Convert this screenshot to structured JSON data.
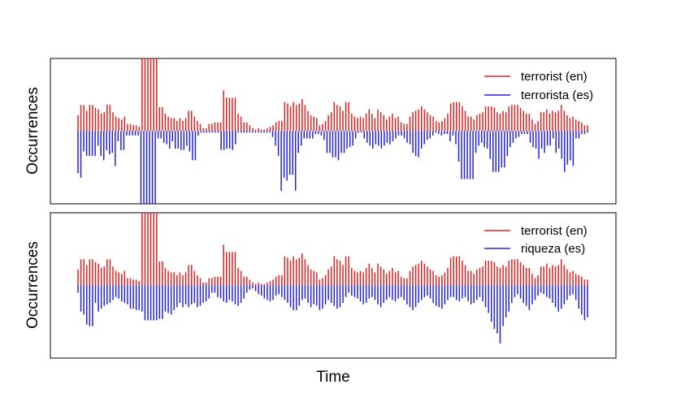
{
  "chart_data": {
    "xlabel": "Time",
    "colors": {
      "en": "#dd2222",
      "es": "#2222dd"
    },
    "panels": [
      {
        "type": "bar",
        "ylabel": "Occurrences",
        "legend_position": "top-right",
        "ylim": [
          -1.0,
          1.0
        ],
        "series": [
          {
            "name": "terrorist (en)",
            "color": "#dd2222",
            "direction": "up",
            "values": [
              0.22,
              0.36,
              0.36,
              0.28,
              0.36,
              0.36,
              0.32,
              0.3,
              0.24,
              0.26,
              0.36,
              0.36,
              0.26,
              0.2,
              0.18,
              0.16,
              0.2,
              0.1,
              0.1,
              0.08,
              0.08,
              0.06,
              1.0,
              1.0,
              1.0,
              1.0,
              1.0,
              1.0,
              0.33,
              0.33,
              0.24,
              0.2,
              0.18,
              0.18,
              0.14,
              0.18,
              0.14,
              0.18,
              0.28,
              0.28,
              0.2,
              0.14,
              0.1,
              0.04,
              0.04,
              0.1,
              0.1,
              0.12,
              0.12,
              0.12,
              0.56,
              0.46,
              0.46,
              0.46,
              0.46,
              0.24,
              0.2,
              0.12,
              0.12,
              0.08,
              0.04,
              0.02,
              0.04,
              0.02,
              0.02,
              0.04,
              0.06,
              0.08,
              0.12,
              0.14,
              0.14,
              0.4,
              0.38,
              0.34,
              0.4,
              0.36,
              0.38,
              0.44,
              0.36,
              0.28,
              0.22,
              0.2,
              0.18,
              0.08,
              0.1,
              0.14,
              0.22,
              0.26,
              0.4,
              0.36,
              0.34,
              0.28,
              0.4,
              0.4,
              0.24,
              0.2,
              0.18,
              0.2,
              0.18,
              0.24,
              0.3,
              0.24,
              0.18,
              0.3,
              0.26,
              0.22,
              0.16,
              0.2,
              0.24,
              0.18,
              0.2,
              0.12,
              0.1,
              0.1,
              0.2,
              0.26,
              0.28,
              0.3,
              0.34,
              0.3,
              0.26,
              0.22,
              0.2,
              0.14,
              0.12,
              0.14,
              0.18,
              0.24,
              0.38,
              0.4,
              0.4,
              0.4,
              0.34,
              0.28,
              0.2,
              0.2,
              0.16,
              0.22,
              0.24,
              0.26,
              0.34,
              0.34,
              0.34,
              0.32,
              0.26,
              0.24,
              0.28,
              0.26,
              0.34,
              0.36,
              0.36,
              0.36,
              0.32,
              0.28,
              0.24,
              0.24,
              0.16,
              0.1,
              0.14,
              0.26,
              0.26,
              0.3,
              0.24,
              0.28,
              0.26,
              0.28,
              0.36,
              0.28,
              0.22,
              0.18,
              0.2,
              0.16,
              0.14,
              0.12,
              0.08,
              0.08
            ]
          },
          {
            "name": "terrorista (es)",
            "color": "#2222dd",
            "direction": "down",
            "values": [
              0.58,
              0.64,
              0.28,
              0.34,
              0.34,
              0.34,
              0.34,
              0.2,
              0.34,
              0.4,
              0.26,
              0.32,
              0.3,
              0.48,
              0.14,
              0.26,
              0.26,
              0.06,
              0.06,
              0.06,
              0.06,
              0.06,
              1.0,
              1.0,
              1.0,
              1.0,
              1.0,
              1.0,
              0.1,
              0.1,
              0.16,
              0.18,
              0.24,
              0.14,
              0.24,
              0.24,
              0.26,
              0.26,
              0.2,
              0.28,
              0.4,
              0.4,
              0.06,
              0.02,
              0.02,
              0.02,
              0.02,
              0.02,
              0.02,
              0.02,
              0.26,
              0.26,
              0.24,
              0.24,
              0.26,
              0.18,
              0.02,
              0.02,
              0.02,
              0.02,
              0.02,
              0.02,
              0.02,
              0.02,
              0.02,
              0.02,
              0.02,
              0.02,
              0.08,
              0.2,
              0.34,
              0.82,
              0.64,
              0.68,
              0.6,
              0.6,
              0.82,
              0.3,
              0.2,
              0.1,
              0.1,
              0.1,
              0.1,
              0.04,
              0.04,
              0.06,
              0.12,
              0.3,
              0.3,
              0.36,
              0.36,
              0.4,
              0.3,
              0.3,
              0.24,
              0.22,
              0.2,
              0.1,
              0.02,
              0.02,
              0.1,
              0.16,
              0.2,
              0.24,
              0.18,
              0.2,
              0.24,
              0.2,
              0.16,
              0.18,
              0.14,
              0.1,
              0.06,
              0.06,
              0.1,
              0.16,
              0.18,
              0.3,
              0.34,
              0.36,
              0.24,
              0.18,
              0.12,
              0.1,
              0.06,
              0.02,
              0.04,
              0.06,
              0.04,
              0.04,
              0.14,
              0.06,
              0.18,
              0.42,
              0.66,
              0.66,
              0.66,
              0.66,
              0.66,
              0.3,
              0.2,
              0.16,
              0.22,
              0.24,
              0.38,
              0.56,
              0.56,
              0.56,
              0.5,
              0.5,
              0.34,
              0.22,
              0.16,
              0.1,
              0.08,
              0.04,
              0.04,
              0.04,
              0.16,
              0.22,
              0.24,
              0.38,
              0.24,
              0.3,
              0.2,
              0.2,
              0.1,
              0.3,
              0.24,
              0.38,
              0.56,
              0.46,
              0.4,
              0.48,
              0.1,
              0.1,
              0.04,
              0.04,
              0.02
            ]
          }
        ]
      },
      {
        "type": "bar",
        "ylabel": "Occurrences",
        "legend_position": "top-right",
        "ylim": [
          -1.0,
          1.0
        ],
        "series": [
          {
            "name": "terrorist (en)",
            "color": "#dd2222",
            "direction": "up",
            "values": [
              0.22,
              0.36,
              0.36,
              0.28,
              0.36,
              0.36,
              0.32,
              0.3,
              0.24,
              0.26,
              0.36,
              0.36,
              0.26,
              0.2,
              0.18,
              0.16,
              0.2,
              0.1,
              0.1,
              0.08,
              0.08,
              0.06,
              1.0,
              1.0,
              1.0,
              1.0,
              1.0,
              1.0,
              0.33,
              0.33,
              0.24,
              0.2,
              0.18,
              0.18,
              0.14,
              0.18,
              0.14,
              0.18,
              0.28,
              0.28,
              0.2,
              0.14,
              0.1,
              0.04,
              0.04,
              0.1,
              0.1,
              0.12,
              0.12,
              0.12,
              0.56,
              0.46,
              0.46,
              0.46,
              0.46,
              0.24,
              0.2,
              0.12,
              0.12,
              0.08,
              0.04,
              0.02,
              0.04,
              0.02,
              0.02,
              0.04,
              0.06,
              0.08,
              0.12,
              0.14,
              0.14,
              0.4,
              0.38,
              0.34,
              0.4,
              0.36,
              0.38,
              0.44,
              0.36,
              0.28,
              0.22,
              0.2,
              0.18,
              0.08,
              0.1,
              0.14,
              0.22,
              0.26,
              0.4,
              0.36,
              0.34,
              0.28,
              0.4,
              0.4,
              0.24,
              0.2,
              0.18,
              0.2,
              0.18,
              0.24,
              0.3,
              0.24,
              0.18,
              0.3,
              0.26,
              0.22,
              0.16,
              0.2,
              0.24,
              0.18,
              0.2,
              0.12,
              0.1,
              0.1,
              0.2,
              0.26,
              0.28,
              0.3,
              0.34,
              0.3,
              0.26,
              0.22,
              0.2,
              0.14,
              0.12,
              0.14,
              0.18,
              0.24,
              0.38,
              0.4,
              0.4,
              0.4,
              0.34,
              0.28,
              0.2,
              0.2,
              0.16,
              0.22,
              0.24,
              0.26,
              0.34,
              0.34,
              0.34,
              0.32,
              0.26,
              0.24,
              0.28,
              0.26,
              0.34,
              0.36,
              0.36,
              0.36,
              0.32,
              0.28,
              0.24,
              0.24,
              0.16,
              0.1,
              0.14,
              0.26,
              0.26,
              0.3,
              0.24,
              0.28,
              0.26,
              0.28,
              0.36,
              0.28,
              0.22,
              0.18,
              0.2,
              0.16,
              0.14,
              0.12,
              0.08,
              0.08
            ]
          },
          {
            "name": "riqueza (es)",
            "color": "#2222dd",
            "direction": "down",
            "values": [
              0.1,
              0.36,
              0.4,
              0.54,
              0.56,
              0.56,
              0.24,
              0.36,
              0.32,
              0.28,
              0.26,
              0.24,
              0.2,
              0.16,
              0.18,
              0.22,
              0.24,
              0.26,
              0.32,
              0.32,
              0.34,
              0.34,
              0.36,
              0.48,
              0.48,
              0.48,
              0.48,
              0.48,
              0.46,
              0.46,
              0.36,
              0.38,
              0.4,
              0.34,
              0.3,
              0.24,
              0.3,
              0.26,
              0.3,
              0.26,
              0.24,
              0.3,
              0.28,
              0.24,
              0.22,
              0.18,
              0.1,
              0.1,
              0.16,
              0.18,
              0.22,
              0.24,
              0.2,
              0.22,
              0.26,
              0.28,
              0.24,
              0.18,
              0.1,
              0.06,
              0.04,
              0.08,
              0.12,
              0.14,
              0.18,
              0.2,
              0.22,
              0.2,
              0.14,
              0.12,
              0.16,
              0.2,
              0.24,
              0.3,
              0.34,
              0.34,
              0.28,
              0.2,
              0.18,
              0.24,
              0.3,
              0.26,
              0.28,
              0.34,
              0.32,
              0.26,
              0.2,
              0.24,
              0.28,
              0.32,
              0.3,
              0.24,
              0.16,
              0.1,
              0.14,
              0.16,
              0.18,
              0.22,
              0.26,
              0.24,
              0.18,
              0.16,
              0.2,
              0.26,
              0.3,
              0.24,
              0.2,
              0.16,
              0.2,
              0.22,
              0.18,
              0.16,
              0.2,
              0.26,
              0.3,
              0.34,
              0.3,
              0.24,
              0.2,
              0.16,
              0.14,
              0.18,
              0.24,
              0.28,
              0.3,
              0.32,
              0.26,
              0.2,
              0.16,
              0.16,
              0.2,
              0.22,
              0.18,
              0.16,
              0.22,
              0.26,
              0.24,
              0.2,
              0.16,
              0.22,
              0.3,
              0.38,
              0.5,
              0.6,
              0.66,
              0.8,
              0.56,
              0.44,
              0.36,
              0.24,
              0.16,
              0.12,
              0.18,
              0.24,
              0.28,
              0.34,
              0.26,
              0.2,
              0.14,
              0.1,
              0.12,
              0.16,
              0.18,
              0.24,
              0.3,
              0.36,
              0.32,
              0.26,
              0.2,
              0.14,
              0.12,
              0.2,
              0.32,
              0.4,
              0.48,
              0.44
            ]
          }
        ]
      }
    ]
  }
}
